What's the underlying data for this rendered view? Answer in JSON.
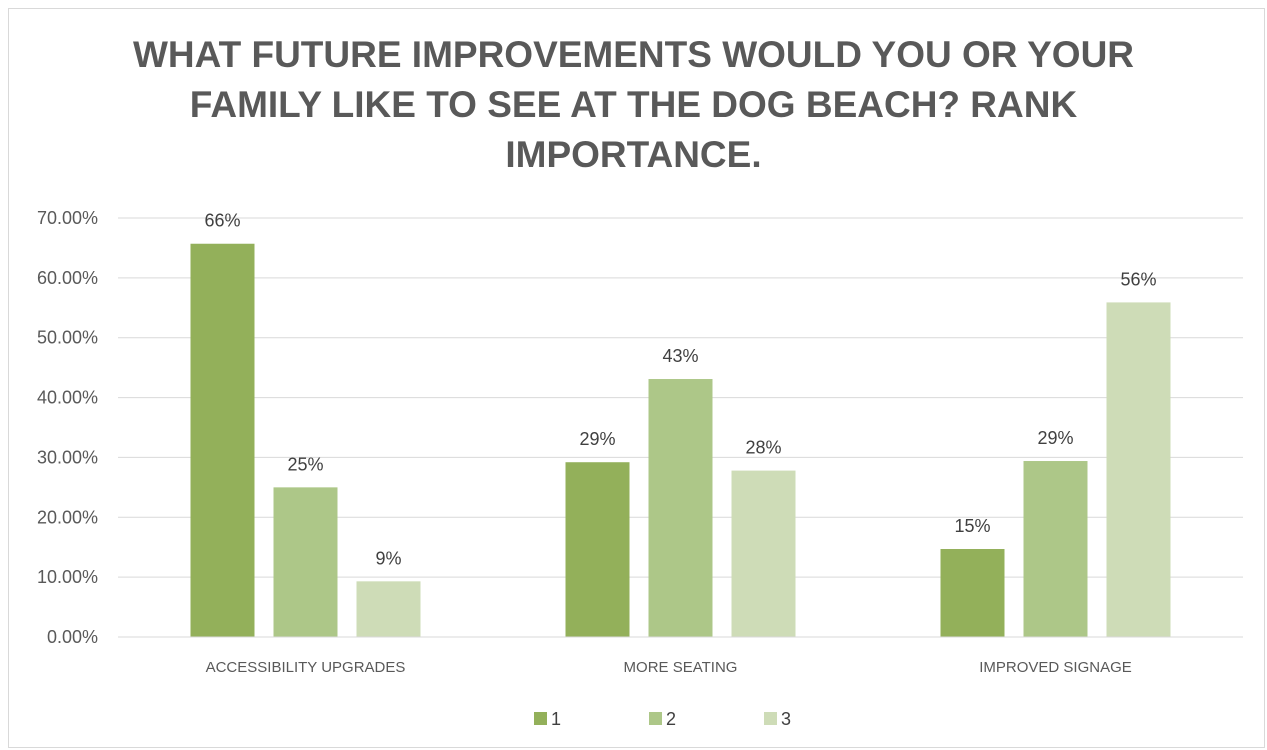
{
  "chart_data": {
    "type": "bar",
    "title_lines": [
      "WHAT FUTURE IMPROVEMENTS WOULD YOU OR YOUR",
      "FAMILY LIKE TO SEE AT THE DOG BEACH? RANK",
      "IMPORTANCE."
    ],
    "categories": [
      "ACCESSIBILITY UPGRADES",
      "MORE SEATING",
      "IMPROVED SIGNAGE"
    ],
    "series": [
      {
        "name": "1",
        "values": [
          65.7,
          29.2,
          14.7
        ],
        "labels": [
          "66%",
          "29%",
          "15%"
        ],
        "color": "#93b05a"
      },
      {
        "name": "2",
        "values": [
          25.0,
          43.1,
          29.4
        ],
        "labels": [
          "25%",
          "43%",
          "29%"
        ],
        "color": "#adc788"
      },
      {
        "name": "3",
        "values": [
          9.3,
          27.8,
          55.9
        ],
        "labels": [
          "9%",
          "28%",
          "56%"
        ],
        "color": "#cedcb7"
      }
    ],
    "ylim": [
      0,
      70
    ],
    "yticks": [
      "0.00%",
      "10.00%",
      "20.00%",
      "30.00%",
      "40.00%",
      "50.00%",
      "60.00%",
      "70.00%"
    ],
    "grid": true,
    "legend": "bottom-center"
  }
}
